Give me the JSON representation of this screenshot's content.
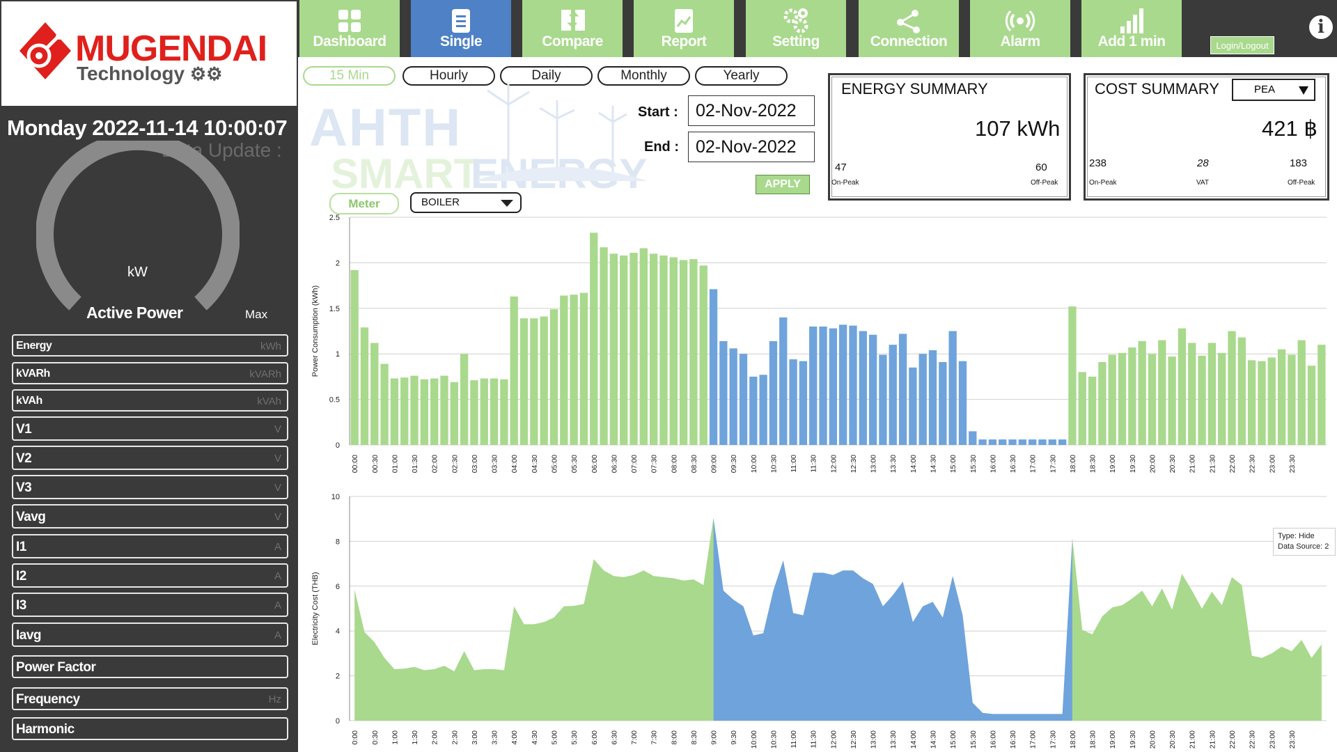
{
  "logo": {
    "brand": "MUGENDAI",
    "sub": "Technology"
  },
  "status": {
    "datetime": "Monday 2022-11-14 10:00:07",
    "data_update": "Data Update :"
  },
  "gauge": {
    "unit": "kW",
    "label": "Active Power",
    "max_label": "Max"
  },
  "params": [
    {
      "label": "Energy",
      "unit": "kWh"
    },
    {
      "label": "kVARh",
      "unit": "kVARh"
    },
    {
      "label": "kVAh",
      "unit": "kVAh"
    },
    {
      "label": "V1",
      "unit": "V"
    },
    {
      "label": "V2",
      "unit": "V"
    },
    {
      "label": "V3",
      "unit": "V"
    },
    {
      "label": "Vavg",
      "unit": "V"
    },
    {
      "label": "I1",
      "unit": "A"
    },
    {
      "label": "I2",
      "unit": "A"
    },
    {
      "label": "I3",
      "unit": "A"
    },
    {
      "label": "Iavg",
      "unit": "A"
    },
    {
      "label": "Power Factor",
      "unit": ""
    },
    {
      "label": "Frequency",
      "unit": "Hz"
    },
    {
      "label": "Harmonic",
      "unit": ""
    }
  ],
  "nav": [
    {
      "label": "Dashboard",
      "icon": "dashboard-icon",
      "active": false
    },
    {
      "label": "Single",
      "icon": "document-icon",
      "active": true
    },
    {
      "label": "Compare",
      "icon": "compare-icon",
      "active": false
    },
    {
      "label": "Report",
      "icon": "report-icon",
      "active": false
    },
    {
      "label": "Setting",
      "icon": "gears-icon",
      "active": false
    },
    {
      "label": "Connection",
      "icon": "share-icon",
      "active": false
    },
    {
      "label": "Alarm",
      "icon": "broadcast-icon",
      "active": false
    },
    {
      "label": "Add 1 min",
      "icon": "signal-bars-icon",
      "active": false
    }
  ],
  "login_label": "Login/Logout",
  "periods": [
    {
      "label": "15 Min",
      "active": true
    },
    {
      "label": "Hourly",
      "active": false
    },
    {
      "label": "Daily",
      "active": false
    },
    {
      "label": "Monthly",
      "active": false
    },
    {
      "label": "Yearly",
      "active": false
    }
  ],
  "watermark": {
    "line1": "AHTH",
    "line2a": "SMART",
    "line2b": "ENERGY"
  },
  "dates": {
    "start_label": "Start :",
    "start": "02-Nov-2022",
    "end_label": "End :",
    "end": "02-Nov-2022",
    "apply": "APPLY"
  },
  "meter": {
    "button": "Meter",
    "selected": "BOILER"
  },
  "energy_summary": {
    "title": "ENERGY SUMMARY",
    "total": "107 kWh",
    "on_peak_value": "47",
    "on_peak_label": "On-Peak",
    "off_peak_value": "60",
    "off_peak_label": "Off-Peak"
  },
  "cost_summary": {
    "title": "COST SUMMARY",
    "provider": "PEA",
    "total": "421 ฿",
    "on_peak_value": "238",
    "on_peak_label": "On-Peak",
    "vat_value": "28",
    "vat_label": "VAT",
    "off_peak_value": "183",
    "off_peak_label": "Off-Peak"
  },
  "tooltip": {
    "line1": "Type: Hide",
    "line2": "Data Source: 2"
  },
  "colors": {
    "off_peak": "#a9d98d",
    "on_peak": "#6fa3dc",
    "panel": "#3a3a3a",
    "nav_active": "#4e81c6"
  },
  "chart_data": [
    {
      "type": "bar",
      "ylabel": "Power Consumption (kWh)",
      "ylim": [
        0,
        2.5
      ],
      "yticks": [
        "0",
        "0.5",
        "1",
        "1.5",
        "2",
        "2.5"
      ],
      "tick_labels": [
        "00:00",
        "00:30",
        "01:00",
        "01:30",
        "02:00",
        "02:30",
        "03:00",
        "03:30",
        "04:00",
        "04:30",
        "05:00",
        "05:30",
        "06:00",
        "06:30",
        "07:00",
        "07:30",
        "08:00",
        "08:30",
        "09:00",
        "09:30",
        "10:00",
        "10:30",
        "11:00",
        "11:30",
        "12:00",
        "12:30",
        "13:00",
        "13:30",
        "14:00",
        "14:30",
        "15:00",
        "15:30",
        "16:00",
        "16:30",
        "17:00",
        "17:30",
        "18:00",
        "18:30",
        "19:00",
        "19:30",
        "20:00",
        "20:30",
        "21:00",
        "21:30",
        "22:00",
        "22:30",
        "23:00",
        "23:30"
      ],
      "values": [
        1.92,
        1.29,
        1.12,
        0.89,
        0.73,
        0.74,
        0.76,
        0.72,
        0.73,
        0.76,
        0.69,
        1.0,
        0.71,
        0.73,
        0.73,
        0.72,
        1.63,
        1.39,
        1.39,
        1.41,
        1.49,
        1.64,
        1.65,
        1.67,
        2.33,
        2.17,
        2.1,
        2.08,
        2.11,
        2.16,
        2.1,
        2.08,
        2.06,
        2.03,
        2.04,
        1.97,
        1.71,
        1.14,
        1.06,
        1.0,
        0.75,
        0.77,
        1.14,
        1.4,
        0.94,
        0.92,
        1.3,
        1.3,
        1.28,
        1.32,
        1.31,
        1.25,
        1.21,
        0.99,
        1.1,
        1.22,
        0.85,
        1.0,
        1.04,
        0.91,
        1.25,
        0.92,
        0.15,
        0.06,
        0.06,
        0.06,
        0.06,
        0.06,
        0.06,
        0.06,
        0.06,
        0.06,
        1.52,
        0.8,
        0.75,
        0.91,
        0.99,
        1.01,
        1.07,
        1.14,
        1.0,
        1.15,
        0.97,
        1.28,
        1.12,
        0.98,
        1.12,
        1.01,
        1.25,
        1.18,
        0.93,
        0.92,
        0.96,
        1.05,
        0.99,
        1.15,
        0.87,
        1.1
      ],
      "on_peak_range_index": [
        36,
        71
      ]
    },
    {
      "type": "area",
      "ylabel": "Electricity Cost (THB)",
      "ylim": [
        0,
        10
      ],
      "yticks": [
        "0",
        "2",
        "4",
        "6",
        "8",
        "10"
      ],
      "tick_labels": [
        "0:00",
        "0:30",
        "1:00",
        "1:30",
        "2:00",
        "2:30",
        "3:00",
        "3:30",
        "4:00",
        "4:30",
        "5:00",
        "5:30",
        "6:00",
        "6:30",
        "7:00",
        "7:30",
        "8:00",
        "8:30",
        "9:00",
        "9:30",
        "10:00",
        "10:30",
        "11:00",
        "11:30",
        "12:00",
        "12:30",
        "13:00",
        "13:30",
        "14:00",
        "14:30",
        "15:00",
        "15:30",
        "16:00",
        "16:30",
        "17:00",
        "17:30",
        "18:00",
        "18:30",
        "19:00",
        "19:30",
        "20:00",
        "20:30",
        "21:00",
        "21:30",
        "22:00",
        "22:30",
        "23:00",
        "23:30"
      ],
      "values": [
        5.85,
        3.95,
        3.5,
        2.8,
        2.3,
        2.32,
        2.4,
        2.25,
        2.3,
        2.45,
        2.2,
        3.1,
        2.25,
        2.3,
        2.3,
        2.25,
        5.1,
        4.3,
        4.3,
        4.4,
        4.6,
        5.1,
        5.12,
        5.2,
        7.2,
        6.7,
        6.45,
        6.4,
        6.5,
        6.7,
        6.45,
        6.4,
        6.35,
        6.25,
        6.3,
        6.05,
        9.05,
        5.8,
        5.4,
        5.1,
        3.8,
        3.9,
        5.8,
        7.15,
        4.8,
        4.7,
        6.6,
        6.6,
        6.5,
        6.7,
        6.7,
        6.35,
        6.1,
        5.1,
        5.6,
        6.2,
        4.4,
        5.1,
        5.3,
        4.6,
        6.45,
        4.7,
        0.8,
        0.35,
        0.3,
        0.3,
        0.3,
        0.3,
        0.3,
        0.3,
        0.3,
        0.3,
        8.15,
        4.05,
        3.85,
        4.65,
        5.05,
        5.15,
        5.45,
        5.8,
        5.1,
        5.9,
        4.95,
        6.55,
        5.8,
        5.0,
        5.75,
        5.15,
        6.4,
        6.05,
        2.9,
        2.8,
        3.0,
        3.3,
        3.1,
        3.6,
        2.8,
        3.4
      ],
      "on_peak_range_index": [
        36,
        71
      ]
    }
  ]
}
